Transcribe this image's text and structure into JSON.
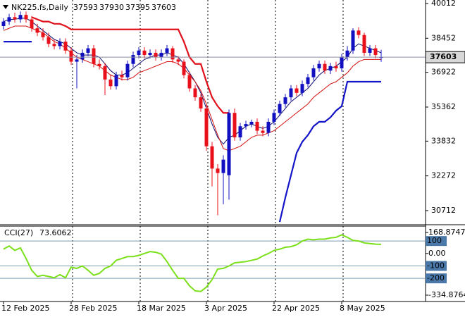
{
  "chart_data": [
    {
      "type": "candlestick",
      "symbol": "NK225.fs,Daily",
      "categories": [
        "12 Feb 2025",
        null,
        null,
        null,
        null,
        null,
        null,
        null,
        null,
        null,
        null,
        null,
        "28 Feb 2025",
        null,
        null,
        null,
        null,
        null,
        null,
        null,
        null,
        null,
        null,
        null,
        "18 Mar 2025",
        null,
        null,
        null,
        null,
        null,
        null,
        null,
        null,
        null,
        null,
        null,
        "3 Apr 2025",
        null,
        null,
        null,
        null,
        null,
        null,
        null,
        null,
        null,
        null,
        null,
        "22 Apr 2025",
        null,
        null,
        null,
        null,
        null,
        null,
        null,
        null,
        null,
        null,
        null,
        "8 May 2025",
        null,
        null,
        null,
        null,
        null,
        null,
        null
      ],
      "open": [
        39000,
        39200,
        39400,
        39300,
        39500,
        39300,
        38900,
        38700,
        38500,
        38200,
        38100,
        38300,
        37900,
        37400,
        37500,
        37800,
        38000,
        37300,
        37200,
        36600,
        36300,
        36800,
        36700,
        37300,
        37700,
        37900,
        37700,
        37800,
        37600,
        37800,
        38000,
        37500,
        37400,
        36800,
        36200,
        35800,
        35300,
        33600,
        32600,
        32400,
        32300,
        35100,
        34000,
        34500,
        34600,
        34700,
        34300,
        34200,
        34700,
        35100,
        35500,
        35800,
        36200,
        36000,
        36400,
        36700,
        37100,
        37300,
        37000,
        37200,
        37100,
        37600,
        37900,
        38800,
        38600,
        37800,
        38000,
        37593
      ],
      "high": [
        39350,
        39550,
        39600,
        39650,
        39650,
        39450,
        39100,
        38900,
        38700,
        38400,
        38450,
        38450,
        38050,
        37700,
        37950,
        38150,
        38150,
        37500,
        37350,
        36800,
        36950,
        37000,
        37450,
        37850,
        38050,
        38050,
        37950,
        37950,
        37950,
        38150,
        38100,
        37650,
        37500,
        36950,
        36350,
        35950,
        35450,
        33800,
        32800,
        33200,
        35250,
        35300,
        34650,
        34750,
        34800,
        34850,
        34500,
        34850,
        35250,
        35650,
        35950,
        36350,
        36350,
        36550,
        36850,
        37250,
        37450,
        37450,
        37350,
        37400,
        37750,
        38100,
        38900,
        38950,
        38700,
        38150,
        38150,
        37930
      ],
      "low": [
        38850,
        39050,
        39150,
        39150,
        39150,
        38750,
        38550,
        38350,
        38050,
        37950,
        37950,
        37750,
        37250,
        36200,
        37350,
        37650,
        37150,
        37050,
        35900,
        36150,
        36150,
        36550,
        36550,
        37150,
        37550,
        37550,
        37550,
        37450,
        37450,
        37650,
        37350,
        37250,
        36650,
        36050,
        35650,
        35150,
        33400,
        31800,
        30500,
        31000,
        31200,
        33850,
        33850,
        34350,
        34450,
        34150,
        34050,
        34050,
        34550,
        34950,
        35350,
        35650,
        35850,
        35850,
        36250,
        36550,
        36950,
        36850,
        36850,
        36950,
        36950,
        37450,
        37750,
        38450,
        37650,
        37650,
        37550,
        37395
      ],
      "close": [
        39200,
        39400,
        39300,
        39500,
        39300,
        38900,
        38700,
        38500,
        38200,
        38100,
        38300,
        37900,
        37400,
        37500,
        37800,
        38000,
        37300,
        37200,
        36600,
        36300,
        36800,
        36700,
        37300,
        37700,
        37900,
        37700,
        37800,
        37600,
        37800,
        38000,
        37500,
        37400,
        36800,
        36200,
        35800,
        35300,
        33600,
        32600,
        32400,
        33000,
        35100,
        34000,
        34500,
        34600,
        34700,
        34300,
        34200,
        34700,
        35100,
        35500,
        35800,
        36200,
        36000,
        36400,
        36700,
        37100,
        37300,
        37000,
        37200,
        37100,
        37600,
        37900,
        38800,
        38600,
        37800,
        38000,
        37700,
        37603
      ],
      "up_color": "#1010c0",
      "down_color": "#e8101a",
      "series": [
        {
          "color": "#0a0a6e",
          "width": 1,
          "values": [
            39200,
            39300,
            39300,
            39350,
            39350,
            39200,
            39000,
            38800,
            38600,
            38400,
            38300,
            38200,
            38000,
            37800,
            37700,
            37700,
            37700,
            37600,
            37300,
            37000,
            36800,
            36800,
            36900,
            37100,
            37300,
            37500,
            37600,
            37700,
            37700,
            37800,
            37700,
            37600,
            37300,
            36900,
            36500,
            36000,
            35300,
            34600,
            34000,
            33700,
            34000,
            34100,
            34300,
            34500,
            34600,
            34500,
            34400,
            34500,
            34700,
            35000,
            35300,
            35600,
            35800,
            36000,
            36200,
            36500,
            36800,
            37000,
            37100,
            37200,
            37400,
            37600,
            38000,
            38200,
            38100,
            38000,
            37900,
            37800
          ]
        },
        {
          "color": "#d41010",
          "width": 1,
          "values": [
            38800,
            38900,
            39000,
            39000,
            39000,
            38900,
            38800,
            38700,
            38500,
            38300,
            38200,
            38000,
            37800,
            37600,
            37500,
            37400,
            37300,
            37200,
            37000,
            36800,
            36700,
            36600,
            36600,
            36700,
            36900,
            37000,
            37100,
            37200,
            37300,
            37400,
            37400,
            37300,
            37100,
            36800,
            36500,
            36100,
            35500,
            34800,
            34100,
            33500,
            33400,
            33500,
            33600,
            33800,
            34000,
            34100,
            34100,
            34200,
            34300,
            34500,
            34700,
            34900,
            35100,
            35300,
            35500,
            35800,
            36000,
            36200,
            36400,
            36500,
            36700,
            36900,
            37200,
            37400,
            37500,
            37500,
            37500,
            37500
          ]
        },
        {
          "color": "#e0101a",
          "width": 2.2,
          "values": [
            null,
            null,
            null,
            null,
            null,
            39400,
            39300,
            39200,
            39200,
            39100,
            39100,
            39000,
            38850,
            38850,
            38850,
            38850,
            38850,
            38850,
            38850,
            38850,
            38850,
            38850,
            38850,
            38850,
            38850,
            38850,
            38850,
            38850,
            38850,
            38850,
            38850,
            38850,
            38300,
            37600,
            37300,
            37300,
            36500,
            35800,
            35400,
            35100,
            35100,
            null,
            null,
            null,
            null,
            null,
            null,
            null,
            null,
            null,
            null,
            null,
            null,
            null,
            null,
            null,
            null,
            null,
            null,
            null,
            null,
            null,
            null,
            null,
            null,
            null,
            null,
            null
          ]
        },
        {
          "color": "#1414c8",
          "width": 2.2,
          "values": [
            38300,
            38300,
            38300,
            38300,
            38300,
            38300,
            null,
            null,
            null,
            null,
            null,
            null,
            null,
            null,
            null,
            null,
            null,
            null,
            null,
            null,
            null,
            null,
            null,
            null,
            null,
            null,
            null,
            null,
            null,
            null,
            null,
            null,
            null,
            null,
            null,
            null,
            null,
            null,
            null,
            null,
            null,
            null,
            null,
            null,
            null,
            null,
            null,
            null,
            null,
            30200,
            31300,
            32300,
            33300,
            33800,
            34100,
            34500,
            34700,
            34700,
            34900,
            35200,
            35400,
            36500,
            36500,
            36500,
            36500,
            36500,
            36500,
            36500
          ]
        }
      ],
      "ylim": [
        30110,
        40170
      ],
      "yticks": [
        40012,
        38452,
        36922,
        35362,
        33832,
        32272,
        30712
      ],
      "grid": true
    },
    {
      "type": "line",
      "title": "CCI(27)",
      "color": "#7be01a",
      "values": [
        35,
        60,
        25,
        45,
        -40,
        -135,
        -185,
        -175,
        -185,
        -195,
        -170,
        -195,
        -110,
        -120,
        -100,
        -135,
        -175,
        -160,
        -120,
        -100,
        -55,
        -40,
        -25,
        -25,
        -15,
        0,
        15,
        10,
        -5,
        -65,
        -135,
        -200,
        -200,
        -260,
        -300,
        -305,
        -270,
        -210,
        -125,
        -120,
        -100,
        -75,
        -70,
        -65,
        -55,
        -45,
        -20,
        0,
        25,
        35,
        50,
        55,
        70,
        100,
        115,
        110,
        115,
        115,
        125,
        130,
        150,
        130,
        105,
        100,
        85,
        80,
        75,
        73.6062
      ],
      "ylim": [
        -334.8764,
        168.8747
      ],
      "yticks": [
        168.8747,
        {
          "value": 0,
          "label": "0.00"
        },
        -334.8764
      ],
      "levels": [
        100,
        -100,
        -200
      ]
    }
  ]
}
